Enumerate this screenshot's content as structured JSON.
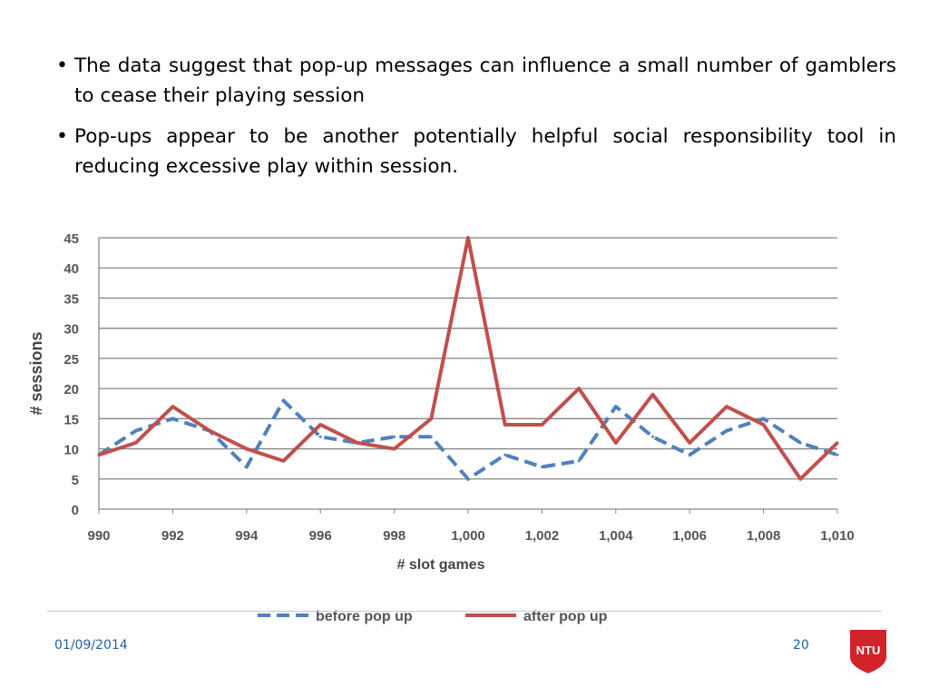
{
  "bullets": [
    "The data suggest that pop-up messages can influence a small number of gamblers to cease their playing session",
    "Pop-ups appear to be another potentially helpful social responsibility tool in reducing excessive play within session."
  ],
  "bullet_glyph": "•",
  "chart_data": {
    "type": "line",
    "xlabel": "# slot games",
    "ylabel": "# sessions",
    "x": [
      990,
      991,
      992,
      993,
      994,
      995,
      996,
      997,
      998,
      999,
      1000,
      1001,
      1002,
      1003,
      1004,
      1005,
      1006,
      1007,
      1008,
      1009,
      1010
    ],
    "xticks": [
      990,
      992,
      994,
      996,
      998,
      1000,
      1002,
      1004,
      1006,
      1008,
      1010
    ],
    "xtick_labels": [
      "990",
      "992",
      "994",
      "996",
      "998",
      "1,000",
      "1,002",
      "1,004",
      "1,006",
      "1,008",
      "1,010"
    ],
    "yticks": [
      0,
      5,
      10,
      15,
      20,
      25,
      30,
      35,
      40,
      45
    ],
    "xlim": [
      990,
      1010
    ],
    "ylim": [
      0,
      45
    ],
    "grid": "horizontal",
    "legend_position": "bottom",
    "series": [
      {
        "name": "before pop up",
        "color": "#4f81bd",
        "style": "dashed",
        "values": [
          9,
          13,
          15,
          13,
          7,
          18,
          12,
          11,
          12,
          12,
          5,
          9,
          7,
          8,
          17,
          12,
          9,
          13,
          15,
          11,
          9
        ]
      },
      {
        "name": "after pop up",
        "color": "#c0504d",
        "style": "solid",
        "values": [
          9,
          11,
          17,
          13,
          10,
          8,
          14,
          11,
          10,
          15,
          45,
          14,
          14,
          20,
          11,
          19,
          11,
          17,
          14,
          5,
          11
        ]
      }
    ]
  },
  "footer": {
    "date": "01/09/2014",
    "page": "20",
    "logo_text": "NTU",
    "logo_color": "#d2232a"
  }
}
